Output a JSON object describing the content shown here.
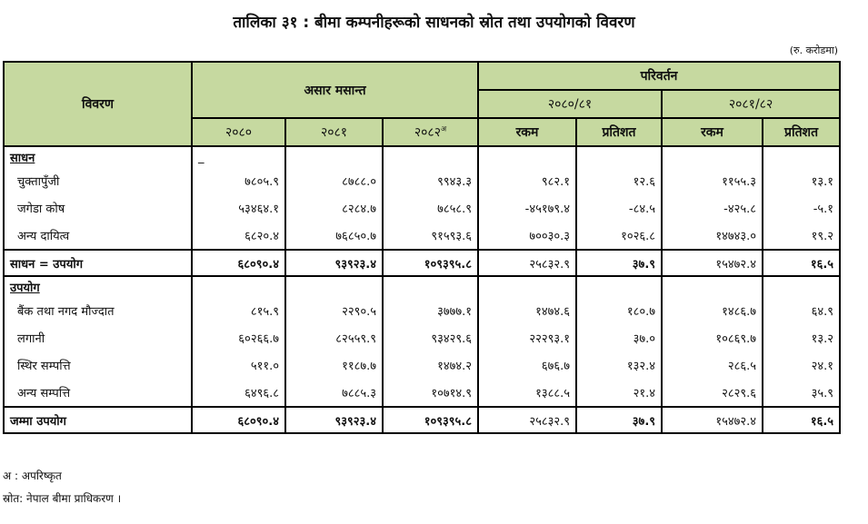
{
  "title": "तालिका ३१ : बीमा कम्पनीहरूको साधनको स्रोत तथा उपयोगको विवरण",
  "unit": "(रु. करोडमा)",
  "header": {
    "col_label": "विवरण",
    "group_year_end": "असार मसान्त",
    "group_change": "परिवर्तन",
    "period1": "२०८०/८१",
    "period2": "२०८१/८२",
    "years": [
      "२०८०",
      "२०८१",
      "२०८२"
    ],
    "year3_sup": "अ",
    "amount": "रकम",
    "percent": "प्रतिशत"
  },
  "sections": [
    {
      "heading": "साधन",
      "marker": "_",
      "rows": [
        {
          "label": "चुक्तापुँजी",
          "values": [
            "७८०५.९",
            "८७८८.०",
            "९९४३.३",
            "९८२.१",
            "१२.६",
            "११५५.३",
            "१३.१"
          ]
        },
        {
          "label": "जगेडा कोष",
          "values": [
            "५३४६४.१",
            "८२८४.७",
            "७८५८.९",
            "-४५१७९.४",
            "-८४.५",
            "-४२५.८",
            "-५.१"
          ]
        },
        {
          "label": "अन्य दायित्व",
          "values": [
            "६८२०.४",
            "७६८५०.७",
            "९१५९३.६",
            "७००३०.३",
            "१०२६.८",
            "१४७४३.०",
            "१९.२"
          ]
        }
      ],
      "total": {
        "label": "साधन = उपयोग",
        "values": [
          "६८०९०.४",
          "९३९२३.४",
          "१०९३९५.८",
          "२५८३२.९",
          "३७.९",
          "१५४७२.४",
          "१६.५"
        ]
      }
    },
    {
      "heading": "उपयोग",
      "rows": [
        {
          "label": "बैंक तथा नगद मौज्दात",
          "values": [
            "८१५.९",
            "२२९०.५",
            "३७७७.१",
            "१४७४.६",
            "१८०.७",
            "१४८६.७",
            "६४.९"
          ]
        },
        {
          "label": "लगानी",
          "values": [
            "६०२६६.७",
            "८२५५९.९",
            "९३४२९.६",
            "२२२९३.१",
            "३७.०",
            "१०८६९.७",
            "१३.२"
          ]
        },
        {
          "label": "स्थिर सम्पत्ति",
          "values": [
            "५११.०",
            "११८७.७",
            "१४७४.२",
            "६७६.७",
            "१३२.४",
            "२८६.५",
            "२४.१"
          ]
        },
        {
          "label": "अन्य सम्पत्ति",
          "values": [
            "६४९६.८",
            "७८८५.३",
            "१०७१४.९",
            "१३८८.५",
            "२१.४",
            "२८२९.६",
            "३५.९"
          ]
        }
      ],
      "total": {
        "label": "जम्मा उपयोग",
        "values": [
          "६८०९०.४",
          "९३९२३.४",
          "१०९३९५.८",
          "२५८३२.९",
          "३७.९",
          "१५४७२.४",
          "१६.५"
        ]
      }
    }
  ],
  "notes": {
    "footnote": "अ : अपरिष्कृत",
    "source": "स्रोत: नेपाल बीमा प्राधिकरण ।"
  },
  "colors": {
    "header_bg": "#c6d9a0"
  }
}
